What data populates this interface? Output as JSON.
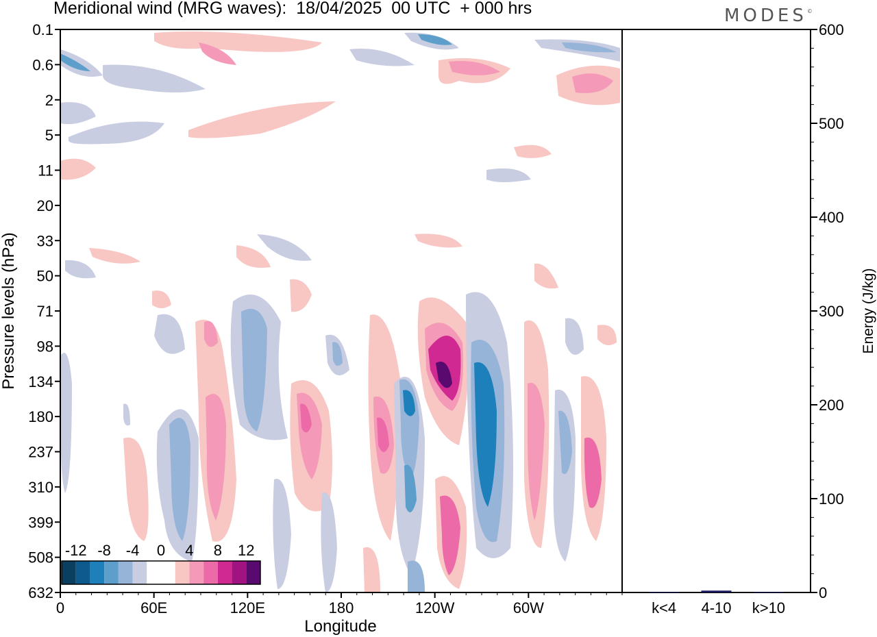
{
  "header": {
    "title": "Meridional wind (MRG waves):  18/04/2025  00 UTC  + 000 hrs",
    "brand": "MODES",
    "brand_mark": "©"
  },
  "chart_data": [
    {
      "type": "heatmap",
      "xlabel": "Longitude",
      "ylabel": "Pressure levels (hPa)",
      "x_ticks": [
        "0",
        "60E",
        "120E",
        "180",
        "120W",
        "60W"
      ],
      "x_tick_degrees": [
        0,
        60,
        120,
        180,
        240,
        300
      ],
      "x_range": [
        0,
        360
      ],
      "y_ticks": [
        "0.1",
        "0.6",
        "2",
        "5",
        "11",
        "20",
        "33",
        "50",
        "71",
        "98",
        "134",
        "180",
        "237",
        "310",
        "399",
        "508",
        "632"
      ],
      "colorbar": {
        "labels": [
          "-12",
          "-8",
          "-4",
          "0",
          "4",
          "8",
          "12"
        ],
        "colors": [
          "#0b3f60",
          "#0e5a8e",
          "#1e80bb",
          "#5d9ecb",
          "#96b3d8",
          "#c9cde2",
          "#ffffff",
          "#ffffff",
          "#f8c6c3",
          "#f49ab8",
          "#ec6aa7",
          "#d02a92",
          "#a11380",
          "#580a6f"
        ]
      },
      "features": [
        {
          "lon": 252,
          "level": "134",
          "value": 12
        },
        {
          "lon": 222,
          "level": "180",
          "value": -10
        },
        {
          "lon": 274,
          "level": "237",
          "value": -10
        },
        {
          "lon": 255,
          "level": "399",
          "value": 9
        },
        {
          "lon": 211,
          "level": "237",
          "value": 8
        },
        {
          "lon": 152,
          "level": "180",
          "value": 9
        },
        {
          "lon": 115,
          "level": "180",
          "value": -8
        },
        {
          "lon": 97,
          "level": "180",
          "value": 7
        },
        {
          "lon": 71,
          "level": "237",
          "value": -7
        },
        {
          "lon": 324,
          "level": "237",
          "value": -6
        },
        {
          "lon": 341,
          "level": "310",
          "value": 7
        },
        {
          "lon": 302,
          "level": "310",
          "value": 6
        },
        {
          "lon": 175,
          "level": "98",
          "value": -5
        },
        {
          "lon": 118,
          "level": "98",
          "value": -5
        },
        {
          "lon": 228,
          "level": "310",
          "value": -7
        },
        {
          "lon": 255,
          "level": "0.6",
          "value": 8
        },
        {
          "lon": 343,
          "level": "2",
          "value": 7
        },
        {
          "lon": 88,
          "level": "0.1",
          "value": 6
        },
        {
          "lon": 10,
          "level": "0.6",
          "value": -9
        },
        {
          "lon": 234,
          "level": "0.1",
          "value": -8
        }
      ]
    },
    {
      "type": "bar",
      "categories": [
        "k<4",
        "4-10",
        "k>10"
      ],
      "values": [
        0.5,
        2,
        0.5
      ],
      "ylabel": "Energy (J/kg)",
      "ylim": [
        0,
        600
      ],
      "y_ticks": [
        "0",
        "100",
        "200",
        "300",
        "400",
        "500",
        "600"
      ],
      "bar_color": "#1a1a5e"
    }
  ]
}
